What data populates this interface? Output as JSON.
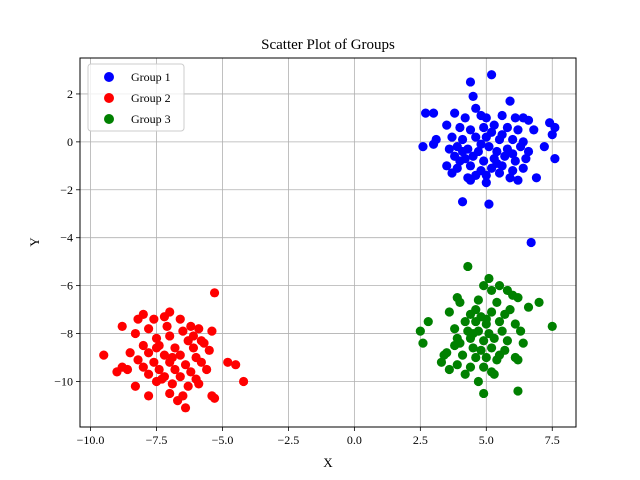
{
  "chart_data": {
    "type": "scatter",
    "title": "Scatter Plot of Groups",
    "xlabel": "X",
    "ylabel": "Y",
    "xlim": [
      -10.4,
      8.4
    ],
    "ylim": [
      -11.9,
      3.5
    ],
    "xticks": [
      -10.0,
      -7.5,
      -5.0,
      -2.5,
      0.0,
      2.5,
      5.0,
      7.5
    ],
    "xtick_labels": [
      "−10.0",
      "−7.5",
      "−5.0",
      "−2.5",
      "0.0",
      "2.5",
      "5.0",
      "7.5"
    ],
    "yticks": [
      -10,
      -8,
      -6,
      -4,
      -2,
      0,
      2
    ],
    "ytick_labels": [
      "−10",
      "−8",
      "−6",
      "−4",
      "−2",
      "0",
      "2"
    ],
    "grid": true,
    "legend_position": "top-left",
    "series": [
      {
        "name": "Group 1",
        "color": "#0000ff",
        "points": [
          [
            4.4,
            2.5
          ],
          [
            5.2,
            2.8
          ],
          [
            4.5,
            1.9
          ],
          [
            5.9,
            1.7
          ],
          [
            4.6,
            1.4
          ],
          [
            2.7,
            1.2
          ],
          [
            3.0,
            1.2
          ],
          [
            3.8,
            1.2
          ],
          [
            4.2,
            1.0
          ],
          [
            4.8,
            1.1
          ],
          [
            5.0,
            1.0
          ],
          [
            5.6,
            1.1
          ],
          [
            6.1,
            1.0
          ],
          [
            6.4,
            1.0
          ],
          [
            6.6,
            0.9
          ],
          [
            7.4,
            0.8
          ],
          [
            7.6,
            0.6
          ],
          [
            3.5,
            0.7
          ],
          [
            4.0,
            0.6
          ],
          [
            4.4,
            0.5
          ],
          [
            4.9,
            0.6
          ],
          [
            5.3,
            0.7
          ],
          [
            5.8,
            0.6
          ],
          [
            6.2,
            0.5
          ],
          [
            6.8,
            0.5
          ],
          [
            7.5,
            0.3
          ],
          [
            3.1,
            0.1
          ],
          [
            3.7,
            0.2
          ],
          [
            4.1,
            0.1
          ],
          [
            4.6,
            0.2
          ],
          [
            5.0,
            0.2
          ],
          [
            5.5,
            0.1
          ],
          [
            6.0,
            0.1
          ],
          [
            6.4,
            0.0
          ],
          [
            2.6,
            -0.2
          ],
          [
            3.0,
            -0.1
          ],
          [
            3.6,
            -0.3
          ],
          [
            3.9,
            -0.2
          ],
          [
            4.3,
            -0.3
          ],
          [
            4.7,
            -0.4
          ],
          [
            5.1,
            -0.2
          ],
          [
            5.4,
            -0.4
          ],
          [
            5.8,
            -0.3
          ],
          [
            6.3,
            -0.2
          ],
          [
            6.6,
            -0.4
          ],
          [
            7.2,
            -0.2
          ],
          [
            3.8,
            -0.6
          ],
          [
            4.2,
            -0.7
          ],
          [
            4.5,
            -0.6
          ],
          [
            4.9,
            -0.8
          ],
          [
            5.3,
            -0.7
          ],
          [
            5.7,
            -0.6
          ],
          [
            6.1,
            -0.8
          ],
          [
            6.5,
            -0.7
          ],
          [
            7.6,
            -0.7
          ],
          [
            3.5,
            -1.0
          ],
          [
            3.9,
            -1.1
          ],
          [
            4.4,
            -1.0
          ],
          [
            4.8,
            -1.2
          ],
          [
            5.2,
            -1.1
          ],
          [
            5.6,
            -1.0
          ],
          [
            6.0,
            -1.2
          ],
          [
            6.4,
            -1.1
          ],
          [
            3.7,
            -1.3
          ],
          [
            4.3,
            -1.5
          ],
          [
            4.6,
            -1.4
          ],
          [
            5.0,
            -1.4
          ],
          [
            5.5,
            -1.3
          ],
          [
            5.9,
            -1.5
          ],
          [
            6.2,
            -1.6
          ],
          [
            6.9,
            -1.5
          ],
          [
            4.4,
            -1.6
          ],
          [
            5.0,
            -1.7
          ],
          [
            5.4,
            -0.9
          ],
          [
            4.1,
            -0.4
          ],
          [
            5.6,
            0.3
          ],
          [
            4.8,
            -0.1
          ],
          [
            5.2,
            0.4
          ],
          [
            6.0,
            -0.5
          ],
          [
            4.0,
            -0.8
          ],
          [
            4.1,
            -2.5
          ],
          [
            5.1,
            -2.6
          ],
          [
            6.7,
            -4.2
          ]
        ]
      },
      {
        "name": "Group 2",
        "color": "#ff0000",
        "points": [
          [
            -5.3,
            -6.3
          ],
          [
            -7.0,
            -7.1
          ],
          [
            -7.6,
            -7.4
          ],
          [
            -7.2,
            -7.3
          ],
          [
            -6.6,
            -7.4
          ],
          [
            -8.0,
            -7.2
          ],
          [
            -8.2,
            -7.4
          ],
          [
            -6.2,
            -7.7
          ],
          [
            -5.9,
            -7.8
          ],
          [
            -5.4,
            -7.9
          ],
          [
            -8.8,
            -7.7
          ],
          [
            -7.8,
            -7.8
          ],
          [
            -7.1,
            -7.7
          ],
          [
            -6.5,
            -7.9
          ],
          [
            -8.3,
            -8.0
          ],
          [
            -7.5,
            -8.2
          ],
          [
            -7.0,
            -8.1
          ],
          [
            -6.3,
            -8.3
          ],
          [
            -5.8,
            -8.3
          ],
          [
            -8.0,
            -8.5
          ],
          [
            -7.4,
            -8.5
          ],
          [
            -6.8,
            -8.6
          ],
          [
            -6.1,
            -8.6
          ],
          [
            -5.5,
            -8.7
          ],
          [
            -8.5,
            -8.8
          ],
          [
            -7.8,
            -8.8
          ],
          [
            -7.2,
            -8.9
          ],
          [
            -6.6,
            -8.9
          ],
          [
            -6.0,
            -9.0
          ],
          [
            -9.5,
            -8.9
          ],
          [
            -8.2,
            -9.1
          ],
          [
            -7.6,
            -9.2
          ],
          [
            -7.0,
            -9.2
          ],
          [
            -6.4,
            -9.3
          ],
          [
            -5.8,
            -9.2
          ],
          [
            -4.8,
            -9.2
          ],
          [
            -4.5,
            -9.3
          ],
          [
            -8.8,
            -9.4
          ],
          [
            -8.0,
            -9.4
          ],
          [
            -7.4,
            -9.5
          ],
          [
            -6.8,
            -9.5
          ],
          [
            -6.2,
            -9.6
          ],
          [
            -5.6,
            -9.5
          ],
          [
            -9.0,
            -9.6
          ],
          [
            -7.8,
            -9.7
          ],
          [
            -7.2,
            -9.8
          ],
          [
            -6.6,
            -9.8
          ],
          [
            -6.0,
            -9.9
          ],
          [
            -5.9,
            -10.1
          ],
          [
            -8.3,
            -10.2
          ],
          [
            -7.5,
            -10.0
          ],
          [
            -6.9,
            -10.1
          ],
          [
            -6.3,
            -10.2
          ],
          [
            -4.2,
            -10.0
          ],
          [
            -7.8,
            -10.6
          ],
          [
            -7.0,
            -10.5
          ],
          [
            -6.5,
            -10.6
          ],
          [
            -5.4,
            -10.6
          ],
          [
            -5.3,
            -10.7
          ],
          [
            -6.7,
            -10.8
          ],
          [
            -6.4,
            -11.1
          ],
          [
            -7.5,
            -8.6
          ],
          [
            -6.9,
            -9.0
          ],
          [
            -6.1,
            -8.1
          ],
          [
            -7.3,
            -9.9
          ],
          [
            -8.6,
            -9.5
          ],
          [
            -5.7,
            -8.4
          ]
        ]
      },
      {
        "name": "Group 3",
        "color": "#008000",
        "points": [
          [
            4.3,
            -5.2
          ],
          [
            5.1,
            -5.7
          ],
          [
            5.5,
            -6.0
          ],
          [
            5.8,
            -6.2
          ],
          [
            4.9,
            -6.0
          ],
          [
            5.2,
            -6.2
          ],
          [
            6.0,
            -6.4
          ],
          [
            6.2,
            -6.5
          ],
          [
            7.0,
            -6.7
          ],
          [
            3.9,
            -6.5
          ],
          [
            4.0,
            -6.7
          ],
          [
            4.7,
            -6.6
          ],
          [
            5.4,
            -6.7
          ],
          [
            6.6,
            -6.9
          ],
          [
            3.6,
            -7.1
          ],
          [
            4.4,
            -7.2
          ],
          [
            4.8,
            -7.3
          ],
          [
            5.2,
            -7.1
          ],
          [
            5.7,
            -7.2
          ],
          [
            2.8,
            -7.5
          ],
          [
            4.2,
            -7.5
          ],
          [
            4.6,
            -7.5
          ],
          [
            5.0,
            -7.6
          ],
          [
            5.5,
            -7.5
          ],
          [
            6.1,
            -7.6
          ],
          [
            7.5,
            -7.7
          ],
          [
            3.8,
            -7.8
          ],
          [
            4.3,
            -7.9
          ],
          [
            4.7,
            -7.9
          ],
          [
            5.1,
            -8.0
          ],
          [
            5.6,
            -7.9
          ],
          [
            6.3,
            -7.9
          ],
          [
            2.5,
            -7.9
          ],
          [
            3.9,
            -8.2
          ],
          [
            4.4,
            -8.2
          ],
          [
            4.9,
            -8.3
          ],
          [
            5.3,
            -8.2
          ],
          [
            5.8,
            -8.3
          ],
          [
            6.4,
            -8.4
          ],
          [
            2.6,
            -8.4
          ],
          [
            3.8,
            -8.5
          ],
          [
            4.5,
            -8.6
          ],
          [
            4.8,
            -8.7
          ],
          [
            5.2,
            -8.6
          ],
          [
            5.7,
            -8.7
          ],
          [
            3.5,
            -8.8
          ],
          [
            4.1,
            -8.9
          ],
          [
            4.6,
            -9.0
          ],
          [
            5.0,
            -9.0
          ],
          [
            5.4,
            -9.1
          ],
          [
            6.1,
            -9.0
          ],
          [
            6.2,
            -9.1
          ],
          [
            3.3,
            -9.2
          ],
          [
            3.9,
            -9.3
          ],
          [
            4.4,
            -9.4
          ],
          [
            4.9,
            -9.4
          ],
          [
            3.6,
            -9.5
          ],
          [
            4.2,
            -9.7
          ],
          [
            5.2,
            -9.6
          ],
          [
            5.3,
            -9.7
          ],
          [
            4.7,
            -10.0
          ],
          [
            6.2,
            -10.4
          ],
          [
            4.9,
            -10.5
          ],
          [
            4.5,
            -8.0
          ],
          [
            5.0,
            -7.4
          ],
          [
            4.0,
            -8.4
          ],
          [
            5.5,
            -8.9
          ],
          [
            4.6,
            -7.0
          ],
          [
            3.4,
            -8.9
          ],
          [
            5.9,
            -7.0
          ]
        ]
      }
    ]
  }
}
